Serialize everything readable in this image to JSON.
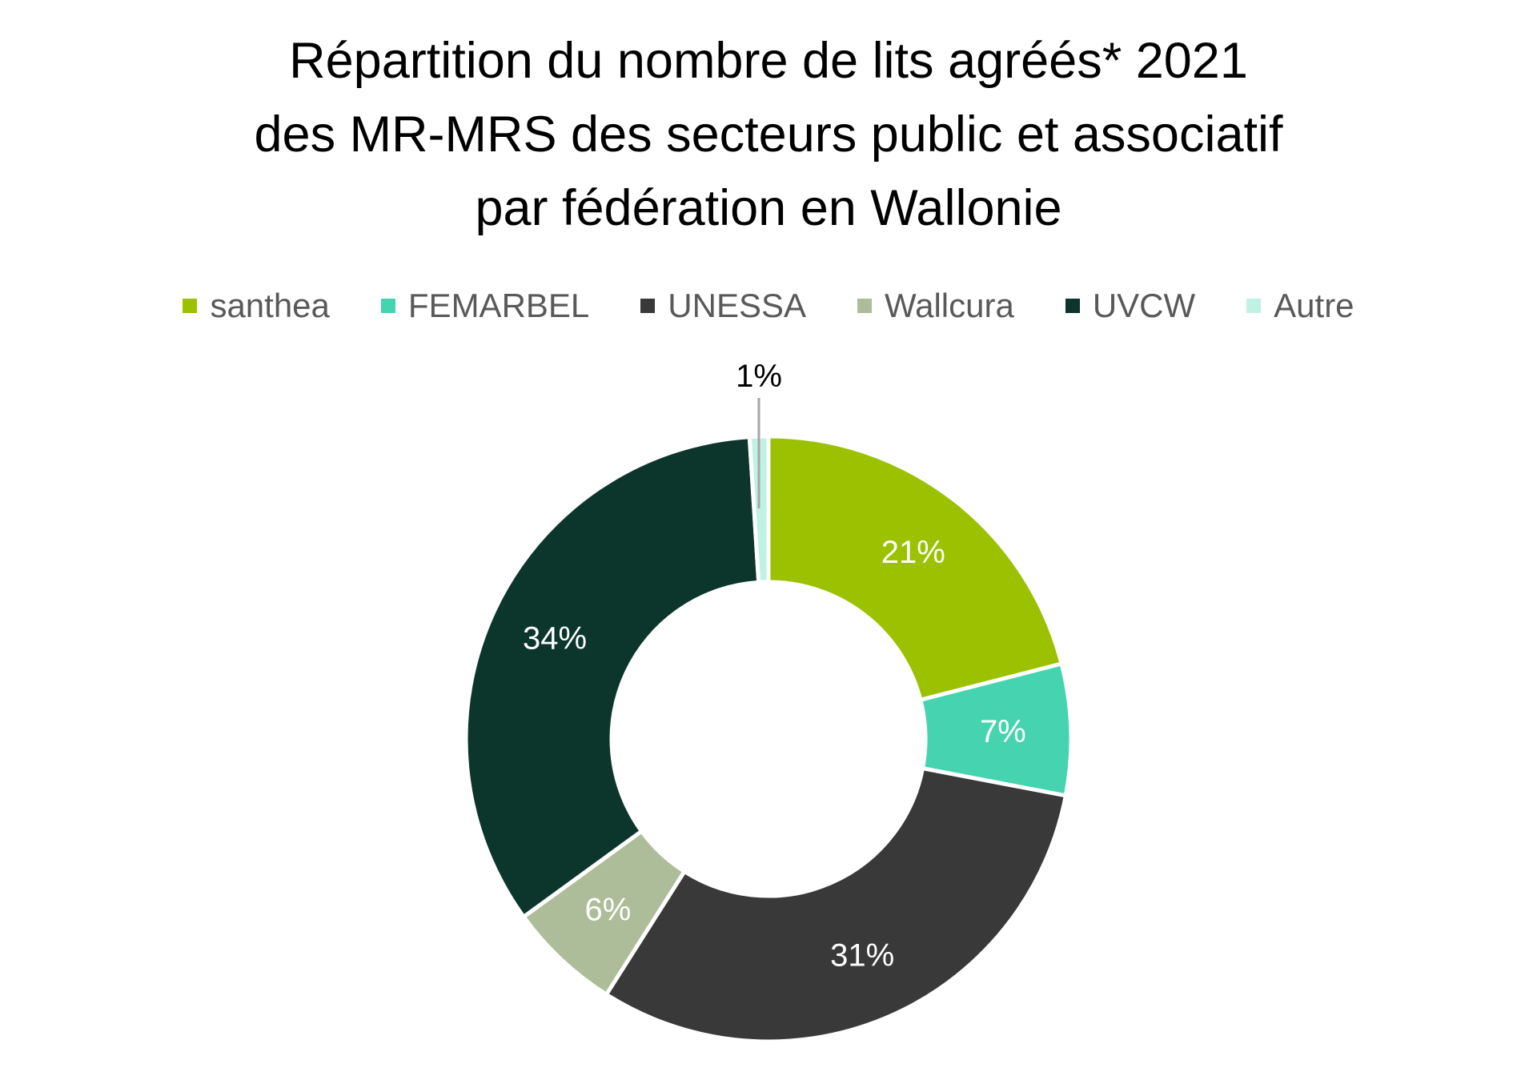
{
  "chart_data": {
    "type": "pie",
    "variant": "donut",
    "title_lines": [
      "Répartition du nombre de lits agréés* 2021",
      "des MR-MRS des secteurs public et associatif",
      "par fédération en Wallonie"
    ],
    "legend_position": "top",
    "series": [
      {
        "name": "santhea",
        "value": 21,
        "label": "21%",
        "color": "#9BC100",
        "label_color": "#ffffff"
      },
      {
        "name": "FEMARBEL",
        "value": 7,
        "label": "7%",
        "color": "#46D4B0",
        "label_color": "#ffffff"
      },
      {
        "name": "UNESSA",
        "value": 31,
        "label": "31%",
        "color": "#3A393A",
        "label_color": "#ffffff"
      },
      {
        "name": "Wallcura",
        "value": 6,
        "label": "6%",
        "color": "#ADBD9A",
        "label_color": "#ffffff"
      },
      {
        "name": "UVCW",
        "value": 34,
        "label": "34%",
        "color": "#0C352C",
        "label_color": "#ffffff"
      },
      {
        "name": "Autre",
        "value": 1,
        "label": "1%",
        "color": "#C0F2E4",
        "label_color": "#000000",
        "label_outside": true
      }
    ]
  }
}
